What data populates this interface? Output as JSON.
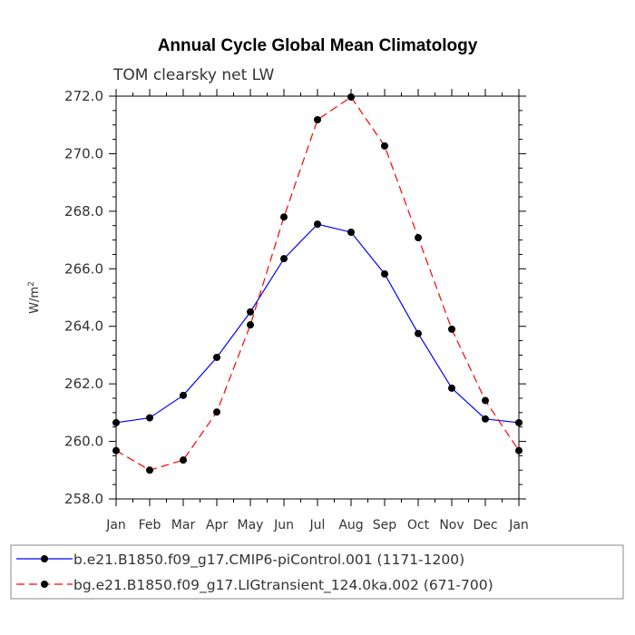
{
  "chart_data": {
    "type": "line",
    "title": "Annual Cycle Global Mean Climatology",
    "subtitle": "TOM clearsky net LW",
    "ylabel_base": "W/m",
    "ylabel_sup": "2",
    "categories": [
      "Jan",
      "Feb",
      "Mar",
      "Apr",
      "May",
      "Jun",
      "Jul",
      "Aug",
      "Sep",
      "Oct",
      "Nov",
      "Dec",
      "Jan"
    ],
    "ylim": [
      258.0,
      272.0
    ],
    "yticks": [
      "258.0",
      "260.0",
      "262.0",
      "264.0",
      "266.0",
      "268.0",
      "270.0",
      "272.0"
    ],
    "grid": false,
    "legend_position": "bottom",
    "series": [
      {
        "name": "b.e21.B1850.f09_g17.CMIP6-piControl.001 (1171-1200)",
        "color": "#0000ff",
        "dash": "solid",
        "values": [
          260.65,
          260.82,
          261.6,
          262.92,
          264.5,
          266.35,
          267.55,
          267.27,
          265.82,
          263.75,
          261.85,
          260.78,
          260.65
        ]
      },
      {
        "name": "bg.e21.B1850.f09_g17.LIGtransient_124.0ka.002 (671-700)",
        "color": "#ff0000",
        "dash": "dashed",
        "values": [
          259.68,
          259.0,
          259.35,
          261.02,
          264.05,
          267.8,
          271.18,
          271.97,
          270.27,
          267.08,
          263.9,
          261.42,
          259.68
        ]
      }
    ]
  }
}
